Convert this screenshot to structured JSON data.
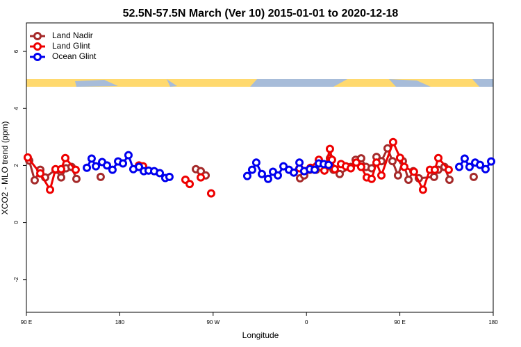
{
  "chart_data": {
    "type": "line",
    "title": "52.5N-57.5N March (Ver 10)   2015-01-01 to 2020-12-18",
    "xlabel": "Longitude",
    "ylabel": "XCO2 - MLO trend (ppm)",
    "xlim": [
      90,
      540
    ],
    "ylim": [
      -3.15,
      7.0
    ],
    "xticks": [
      {
        "value": 90,
        "label": "90 E"
      },
      180,
      {
        "value": 270,
        "label": "90 W"
      },
      {
        "value": 360,
        "label": "0"
      },
      {
        "value": 450,
        "label": "90 E"
      },
      {
        "value": 540,
        "label": "180"
      }
    ],
    "yticks": [
      -2,
      0,
      2,
      4,
      6
    ],
    "legend": "top-left",
    "series": [
      {
        "name": "Land Nadir",
        "color": "#a52a2a",
        "x": [
          92.7,
          98,
          103.4,
          108.1,
          118.1,
          123.5,
          128.2,
          133.5,
          138.2,
          null,
          161.6,
          null,
          253.4,
          258.1,
          262.8,
          null,
          353.8,
          357.8,
          363.2,
          369.2,
          373.9,
          379.3,
          382.6,
          386,
          392,
          402.7,
          407.4,
          412.7,
          417.4,
          422.8,
          427.5,
          432.2,
          438.2,
          442.9,
          448.2,
          452.9,
          458.3,
          463,
          468.3,
          483,
          487,
          493,
          497.8,
          null,
          521.2
        ],
        "values": [
          2.17,
          1.48,
          1.85,
          1.58,
          1.85,
          1.58,
          1.9,
          1.95,
          1.53,
          null,
          1.6,
          null,
          1.87,
          1.8,
          1.65,
          null,
          1.55,
          1.65,
          1.85,
          1.85,
          1.95,
          1.95,
          2.25,
          1.85,
          1.7,
          1.95,
          2.2,
          2.25,
          1.95,
          1.9,
          2.3,
          2.15,
          2.6,
          2.15,
          1.65,
          2.15,
          1.5,
          1.8,
          1.55,
          1.6,
          1.85,
          1.95,
          1.5,
          null,
          1.6
        ]
      },
      {
        "name": "Land Glint",
        "color": "#ee0000",
        "x": [
          91.3,
          103.4,
          112.8,
          118.1,
          123.5,
          127.5,
          137.5,
          null,
          198.5,
          202.5,
          null,
          243.3,
          247.4,
          null,
          258.1,
          null,
          268.1,
          null,
          353.2,
          363.9,
          371.9,
          377.3,
          382.6,
          384.6,
          387.3,
          393.3,
          398,
          402.7,
          408,
          412.7,
          418.1,
          422.8,
          427.5,
          432.2,
          443.5,
          450.2,
          454.3,
          463.6,
          472.3,
          479,
          483.7,
          487.1,
          497.1
        ],
        "values": [
          2.28,
          1.72,
          1.15,
          1.87,
          1.87,
          2.26,
          1.85,
          null,
          2.0,
          1.97,
          null,
          1.5,
          1.35,
          null,
          1.58,
          null,
          1.02,
          null,
          1.9,
          1.92,
          2.2,
          1.82,
          2.58,
          2.2,
          1.87,
          2.05,
          1.97,
          1.9,
          2.1,
          1.95,
          1.58,
          1.53,
          2.1,
          1.65,
          2.82,
          2.27,
          1.95,
          1.78,
          1.15,
          1.85,
          1.85,
          2.26,
          1.85
        ]
      },
      {
        "name": "Ocean Glint",
        "color": "#0000ee",
        "x": [
          148.3,
          152.9,
          157,
          163,
          167.7,
          173,
          178.4,
          183.1,
          188.4,
          193.1,
          198.5,
          203.2,
          207.8,
          213.2,
          218.6,
          223.9,
          227.9,
          null,
          302.9,
          307.6,
          311.6,
          317,
          323,
          327.7,
          332.4,
          337.8,
          343.1,
          347.8,
          353.2,
          357.8,
          363.2,
          367.9,
          371.9,
          376.6,
          381.3,
          null,
          507.2,
          512.5,
          517.2,
          522.6,
          527.3,
          532.6,
          538
        ],
        "values": [
          1.92,
          2.24,
          1.97,
          2.12,
          2.0,
          1.85,
          2.14,
          2.07,
          2.36,
          1.87,
          1.95,
          1.8,
          1.82,
          1.8,
          1.73,
          1.56,
          1.6,
          null,
          1.63,
          1.85,
          2.1,
          1.7,
          1.53,
          1.78,
          1.65,
          1.97,
          1.85,
          1.75,
          2.1,
          1.8,
          1.87,
          1.85,
          2.07,
          2.05,
          2.02,
          null,
          1.95,
          2.24,
          1.95,
          2.1,
          2.02,
          1.87,
          2.14
        ]
      }
    ]
  }
}
